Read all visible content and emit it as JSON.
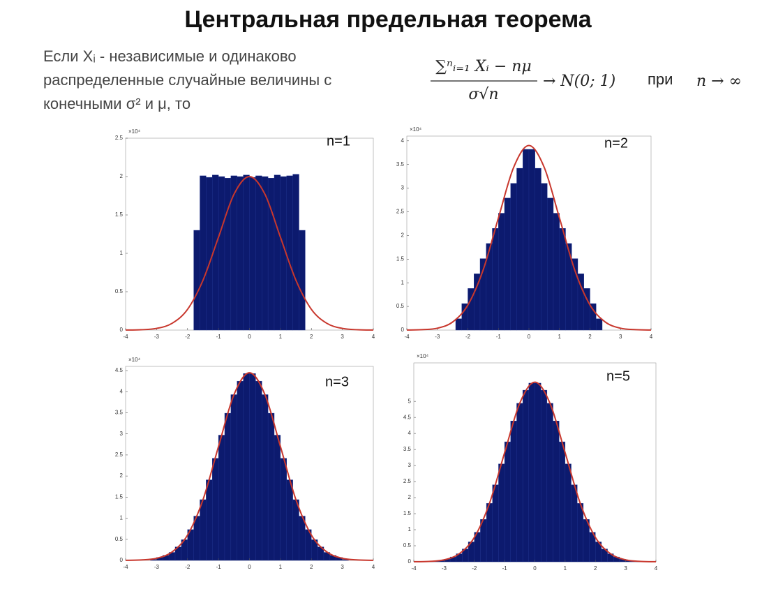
{
  "slide": {
    "title": "Центральная предельная теорема",
    "statement": [
      "Если Xᵢ - независимые и одинаково",
      "распределенные случайные величины с",
      "конечными σ² и μ, то"
    ],
    "formula": {
      "numerator": "∑ⁿᵢ₌₁ Xᵢ − nμ",
      "denominator": "σ√n",
      "limit": "→ N(0; 1)",
      "condition_word": "при",
      "condition": "n → ∞"
    }
  },
  "chart_data": [
    {
      "type": "histogram",
      "label": "n=1",
      "multiplier": "×10⁴",
      "color": "#0c1a6e",
      "bins": [
        -4,
        -3.8,
        -3.6,
        -3.4,
        -3.2,
        -3,
        -2.8,
        -2.6,
        -2.4,
        -2.2,
        -2,
        -1.8,
        -1.6,
        -1.4,
        -1.2,
        -1,
        -0.8,
        -0.6,
        -0.4,
        -0.2,
        0,
        0.2,
        0.4,
        0.6,
        0.8,
        1,
        1.2,
        1.4,
        1.6,
        1.8,
        2,
        2.2,
        2.4,
        2.6,
        2.8,
        3,
        3.2,
        3.4,
        3.6,
        3.8,
        4
      ],
      "counts": [
        0,
        0,
        0,
        0,
        0,
        0,
        0,
        0,
        0,
        0,
        0,
        1.3,
        2.01,
        1.99,
        2.02,
        2.0,
        1.98,
        2.01,
        2.0,
        2.02,
        1.99,
        2.01,
        2.0,
        1.98,
        2.02,
        2.0,
        2.01,
        2.03,
        1.3,
        0,
        0,
        0,
        0,
        0,
        0,
        0,
        0,
        0,
        0,
        0
      ],
      "curve": {
        "color": "#c8372d",
        "x": [
          -4,
          -3.5,
          -3,
          -2.5,
          -2,
          -1.5,
          -1,
          -0.5,
          0,
          0.5,
          1,
          1.5,
          2,
          2.5,
          3,
          3.5,
          4
        ],
        "y": [
          0.0007,
          0.0044,
          0.022,
          0.088,
          0.27,
          0.65,
          1.21,
          1.77,
          2.0,
          1.77,
          1.21,
          0.65,
          0.27,
          0.088,
          0.022,
          0.0044,
          0.0007
        ]
      },
      "xlim": [
        -4,
        4
      ],
      "xticks": [
        -4,
        -3,
        -2,
        -1,
        0,
        1,
        2,
        3,
        4
      ],
      "ylim": [
        0,
        2.5
      ],
      "yticks": [
        0,
        0.5,
        1,
        1.5,
        2,
        2.5
      ]
    },
    {
      "type": "histogram",
      "label": "n=2",
      "multiplier": "×10⁴",
      "color": "#0c1a6e",
      "bins": [
        -4,
        -3.8,
        -3.6,
        -3.4,
        -3.2,
        -3,
        -2.8,
        -2.6,
        -2.4,
        -2.2,
        -2,
        -1.8,
        -1.6,
        -1.4,
        -1.2,
        -1,
        -0.8,
        -0.6,
        -0.4,
        -0.2,
        0,
        0.2,
        0.4,
        0.6,
        0.8,
        1,
        1.2,
        1.4,
        1.6,
        1.8,
        2,
        2.2,
        2.4,
        2.6,
        2.8,
        3,
        3.2,
        3.4,
        3.6,
        3.8,
        4
      ],
      "counts": [
        0,
        0,
        0,
        0,
        0,
        0,
        0,
        0,
        0.24,
        0.56,
        0.88,
        1.19,
        1.51,
        1.83,
        2.15,
        2.47,
        2.79,
        3.1,
        3.42,
        3.82,
        3.82,
        3.42,
        3.1,
        2.79,
        2.47,
        2.15,
        1.83,
        1.51,
        1.19,
        0.88,
        0.56,
        0.24,
        0,
        0,
        0,
        0,
        0,
        0,
        0,
        0
      ],
      "curve": {
        "color": "#c8372d",
        "x": [
          -4,
          -3.5,
          -3,
          -2.5,
          -2,
          -1.5,
          -1,
          -0.5,
          0,
          0.5,
          1,
          1.5,
          2,
          2.5,
          3,
          3.5,
          4
        ],
        "y": [
          0.001,
          0.009,
          0.04,
          0.17,
          0.53,
          1.27,
          2.37,
          3.44,
          3.9,
          3.44,
          2.37,
          1.27,
          0.53,
          0.17,
          0.04,
          0.009,
          0.001
        ]
      },
      "xlim": [
        -4,
        4
      ],
      "xticks": [
        -4,
        -3,
        -2,
        -1,
        0,
        1,
        2,
        3,
        4
      ],
      "ylim": [
        0,
        4.1
      ],
      "yticks": [
        0,
        0.5,
        1,
        1.5,
        2,
        2.5,
        3,
        3.5,
        4
      ]
    },
    {
      "type": "histogram",
      "label": "n=3",
      "multiplier": "×10⁴",
      "color": "#0c1a6e",
      "bins": [
        -4,
        -3.8,
        -3.6,
        -3.4,
        -3.2,
        -3,
        -2.8,
        -2.6,
        -2.4,
        -2.2,
        -2,
        -1.8,
        -1.6,
        -1.4,
        -1.2,
        -1,
        -0.8,
        -0.6,
        -0.4,
        -0.2,
        0,
        0.2,
        0.4,
        0.6,
        0.8,
        1,
        1.2,
        1.4,
        1.6,
        1.8,
        2,
        2.2,
        2.4,
        2.6,
        2.8,
        3,
        3.2,
        3.4,
        3.6,
        3.8,
        4
      ],
      "counts": [
        0,
        0,
        0,
        0,
        0.02,
        0.07,
        0.12,
        0.19,
        0.32,
        0.49,
        0.73,
        1.05,
        1.44,
        1.91,
        2.42,
        2.97,
        3.49,
        3.93,
        4.25,
        4.43,
        4.43,
        4.25,
        3.93,
        3.49,
        2.97,
        2.42,
        1.91,
        1.44,
        1.05,
        0.73,
        0.49,
        0.32,
        0.19,
        0.12,
        0.07,
        0.02,
        0,
        0,
        0,
        0
      ],
      "curve": {
        "color": "#c8372d",
        "x": [
          -4,
          -3.5,
          -3,
          -2.5,
          -2,
          -1.5,
          -1,
          -0.5,
          0,
          0.5,
          1,
          1.5,
          2,
          2.5,
          3,
          3.5,
          4
        ],
        "y": [
          0.0013,
          0.01,
          0.05,
          0.2,
          0.6,
          1.44,
          2.7,
          3.93,
          4.45,
          3.93,
          2.7,
          1.44,
          0.6,
          0.2,
          0.05,
          0.01,
          0.0013
        ]
      },
      "xlim": [
        -4,
        4
      ],
      "xticks": [
        -4,
        -3,
        -2,
        -1,
        0,
        1,
        2,
        3,
        4
      ],
      "ylim": [
        0,
        4.6
      ],
      "yticks": [
        0,
        0.5,
        1,
        1.5,
        2,
        2.5,
        3,
        3.5,
        4,
        4.5
      ]
    },
    {
      "type": "histogram",
      "label": "n=5",
      "multiplier": "×10⁴",
      "color": "#0c1a6e",
      "bins": [
        -4,
        -3.8,
        -3.6,
        -3.4,
        -3.2,
        -3,
        -2.8,
        -2.6,
        -2.4,
        -2.2,
        -2,
        -1.8,
        -1.6,
        -1.4,
        -1.2,
        -1,
        -0.8,
        -0.6,
        -0.4,
        -0.2,
        0,
        0.2,
        0.4,
        0.6,
        0.8,
        1,
        1.2,
        1.4,
        1.6,
        1.8,
        2,
        2.2,
        2.4,
        2.6,
        2.8,
        3,
        3.2,
        3.4,
        3.6,
        3.8,
        4
      ],
      "counts": [
        0,
        0,
        0.01,
        0.02,
        0.04,
        0.08,
        0.15,
        0.25,
        0.4,
        0.62,
        0.92,
        1.32,
        1.82,
        2.4,
        3.05,
        3.74,
        4.39,
        4.94,
        5.35,
        5.57,
        5.57,
        5.35,
        4.94,
        4.39,
        3.74,
        3.05,
        2.4,
        1.82,
        1.32,
        0.92,
        0.62,
        0.4,
        0.25,
        0.15,
        0.08,
        0.04,
        0.02,
        0.01,
        0,
        0
      ],
      "curve": {
        "color": "#c8372d",
        "x": [
          -4,
          -3.5,
          -3,
          -2.5,
          -2,
          -1.5,
          -1,
          -0.5,
          0,
          0.5,
          1,
          1.5,
          2,
          2.5,
          3,
          3.5,
          4
        ],
        "y": [
          0.002,
          0.012,
          0.06,
          0.25,
          0.76,
          1.82,
          3.4,
          4.94,
          5.6,
          4.94,
          3.4,
          1.82,
          0.76,
          0.25,
          0.06,
          0.012,
          0.002
        ]
      },
      "xlim": [
        -4,
        4
      ],
      "xticks": [
        -4,
        -3,
        -2,
        -1,
        0,
        1,
        2,
        3,
        4
      ],
      "ylim": [
        0,
        6.2
      ],
      "yticks": [
        0,
        0.5,
        1,
        1.5,
        2,
        2.5,
        3,
        3.5,
        4,
        4.5,
        5
      ]
    }
  ]
}
